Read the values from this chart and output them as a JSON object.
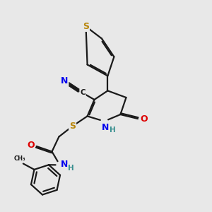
{
  "bg_color": "#e8e8e8",
  "bond_color": "#1a1a1a",
  "bond_width": 1.6,
  "dbo": 0.06,
  "atom_colors": {
    "S": "#b8860b",
    "N": "#0000ee",
    "O": "#dd0000",
    "C": "#1a1a1a",
    "H": "#3a9090"
  },
  "fs": 7.5
}
